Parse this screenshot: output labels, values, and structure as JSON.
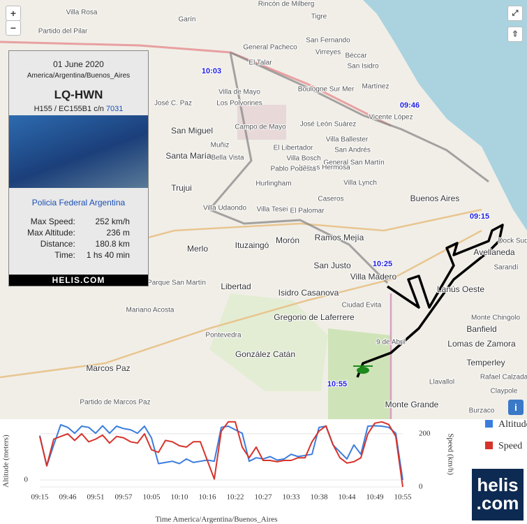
{
  "map": {
    "zoom_in": "+",
    "zoom_out": "−",
    "info_button": "i",
    "place_labels": [
      "Villa Rosa",
      "Garín",
      "Rincón de Milberg",
      "Tigre",
      "San Fernando",
      "General Pacheco",
      "Virreyes",
      "Béccar",
      "San Isidro",
      "El Talar",
      "Martínez",
      "Boulogne Sur Mer",
      "Villa de Mayo",
      "Los Polvorines",
      "Vicente López",
      "José C. Paz",
      "San Miguel",
      "Campo de Mayo",
      "José León Suárez",
      "Villa Ballester",
      "Muñiz",
      "Santa María",
      "Bella Vista",
      "El Libertador",
      "San Andrés",
      "Villa Bosch",
      "General San Martín",
      "Lomas Hermosa",
      "Pablo Podestá",
      "Trujui",
      "Hurlingham",
      "Villa Lynch",
      "Buenos Aires",
      "Caseros",
      "Villa Udaondo",
      "Villa Tesei",
      "El Palomar",
      "Ramos Mejía",
      "Morón",
      "Merlo",
      "Ituzaingó",
      "San Justo",
      "Villa Madero",
      "Avellaneda",
      "Sarandí",
      "Lanús Oeste",
      "Libertad",
      "Parque San Martín",
      "Isidro Casanova",
      "Ciudad Evita",
      "Banfield",
      "Monte Chingolo",
      "Mariano Acosta",
      "Gregorio de Laferrere",
      "Lomas de Zamora",
      "9 de Abril",
      "Pontevedra",
      "Temperley",
      "González Catán",
      "Marcos Paz",
      "Rafael Calzada",
      "Claypole",
      "Monte Grande",
      "Llavallol",
      "Burzaco",
      "Partido de Marcos Paz",
      "Partido del Pilar",
      "Dock Sud"
    ],
    "time_labels": [
      "10:03",
      "09:46",
      "09:15",
      "10:25",
      "10:55"
    ]
  },
  "info_card": {
    "date": "01 June 2020",
    "timezone": "America/Argentina/Buenos_Aires",
    "registration": "LQ-HWN",
    "aircraft_type": "H155 / EC155B1 c/n",
    "serial_link": "7031",
    "operator": "Policia Federal Argentina",
    "stats": [
      {
        "label": "Max Speed:",
        "value": "252 km/h"
      },
      {
        "label": "Max Altitude:",
        "value": "236 m"
      },
      {
        "label": "Distance:",
        "value": "180.8 km"
      },
      {
        "label": "Time:",
        "value": "1 hs 40 min"
      }
    ],
    "footer": "HELIS.COM"
  },
  "chart_data": {
    "type": "line",
    "categories": [
      "09:15",
      null,
      null,
      null,
      "09:46",
      null,
      null,
      null,
      "09:51",
      null,
      null,
      null,
      "09:57",
      null,
      null,
      null,
      "10:05",
      null,
      null,
      null,
      "10:10",
      null,
      null,
      null,
      "10:16",
      null,
      null,
      null,
      "10:22",
      null,
      null,
      null,
      "10:27",
      null,
      null,
      null,
      "10:33",
      null,
      null,
      null,
      "10:38",
      null,
      null,
      null,
      "10:44",
      null,
      null,
      null,
      "10:49",
      null,
      null,
      null,
      "10:55"
    ],
    "series": [
      {
        "name": "Altitude",
        "color": "#3b7ddd",
        "axis": "y",
        "values": [
          190,
          60,
          150,
          236,
          225,
          200,
          230,
          225,
          200,
          232,
          200,
          230,
          220,
          215,
          200,
          230,
          180,
          70,
          75,
          80,
          70,
          90,
          75,
          80,
          85,
          80,
          225,
          230,
          215,
          200,
          80,
          95,
          90,
          100,
          85,
          90,
          110,
          100,
          105,
          110,
          225,
          230,
          150,
          120,
          90,
          150,
          110,
          230,
          232,
          230,
          225,
          200,
          0
        ]
      },
      {
        "name": "Speed",
        "color": "#d6332b",
        "axis": "y2",
        "values": [
          190,
          80,
          180,
          190,
          200,
          175,
          200,
          170,
          180,
          195,
          165,
          190,
          185,
          170,
          165,
          200,
          140,
          130,
          175,
          170,
          155,
          150,
          170,
          170,
          100,
          30,
          210,
          245,
          245,
          150,
          110,
          150,
          100,
          100,
          95,
          100,
          100,
          110,
          110,
          170,
          210,
          230,
          160,
          110,
          90,
          95,
          110,
          200,
          240,
          245,
          235,
          190,
          0
        ]
      }
    ],
    "ylabel": "Altitude (meters)",
    "y2label": "Speed (km/h)",
    "xlabel": "Time America/Argentina/Buenos_Aires",
    "ylim": [
      -30,
      260
    ],
    "yticks": [
      0
    ],
    "y2lim": [
      0,
      255
    ],
    "y2ticks": [
      0,
      200
    ],
    "grid": true
  },
  "logo": {
    "line1": "helis",
    "line2": ".com"
  }
}
